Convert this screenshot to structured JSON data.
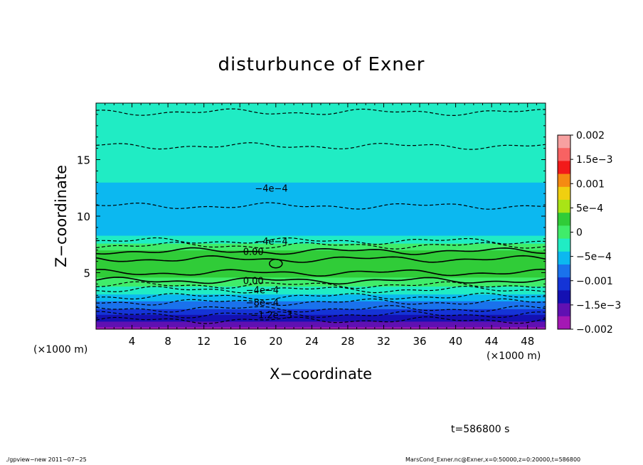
{
  "title": "disturbunce of Exner",
  "xlabel": "X−coordinate",
  "ylabel": "Z−coordinate",
  "x_unit_left": "(×1000 m)",
  "x_unit_right": "(×1000 m)",
  "time_label": "t=586800 s",
  "footer_left": "./gpview−new   2011−07−25",
  "footer_right": "MarsCond_Exner.nc@Exner,x=0:50000,z=0:20000,t=586800",
  "chart_data": {
    "type": "heatmap",
    "title": "disturbunce of Exner",
    "xlabel": "X−coordinate",
    "ylabel": "Z−coordinate",
    "xlim": [
      0,
      50
    ],
    "ylim": [
      0,
      20
    ],
    "x_ticks": [
      4,
      8,
      12,
      16,
      20,
      24,
      28,
      32,
      36,
      40,
      44,
      48
    ],
    "y_ticks": [
      5,
      10,
      15
    ],
    "x_tick_labels": [
      "4",
      "8",
      "12",
      "16",
      "20",
      "24",
      "28",
      "32",
      "36",
      "40",
      "44",
      "48"
    ],
    "y_tick_labels": [
      "5",
      "10",
      "15"
    ],
    "colorbar": {
      "range": [
        -0.002,
        0.002
      ],
      "tick_values": [
        0.002,
        0.0015,
        0.001,
        0.0005,
        0,
        -0.0005,
        -0.001,
        -0.0015,
        -0.002
      ],
      "tick_labels": [
        "0.002",
        "1.5e−3",
        "0.001",
        "5e−4",
        "0",
        "−5e−4",
        "−0.001",
        "−1.5e−3",
        "−0.002"
      ],
      "colors": [
        "#f7a0a0",
        "#f86262",
        "#f21a1a",
        "#f58a12",
        "#f0cf10",
        "#a9e416",
        "#30cc38",
        "#40ec6a",
        "#20ecc4",
        "#0cb8f0",
        "#1a72ec",
        "#1434d6",
        "#1410b2",
        "#6010b2",
        "#a418b4"
      ]
    },
    "profile": {
      "z": [
        0,
        0.5,
        1,
        1.5,
        2,
        2.5,
        3,
        3.5,
        4,
        4.5,
        5,
        5.5,
        6,
        6.5,
        7,
        7.5,
        8,
        8.5,
        9,
        10,
        11,
        12,
        13,
        14,
        15,
        16,
        17,
        18,
        19,
        20
      ],
      "values": [
        -0.0018,
        -0.0016,
        -0.0013,
        -0.0011,
        -0.00085,
        -0.00065,
        -0.00045,
        -0.00025,
        -5e-05,
        0.0001,
        0.00024,
        0.00032,
        0.00036,
        0.00033,
        0.00015,
        -0.0001,
        -0.0003,
        -0.0005,
        -0.00058,
        -0.00065,
        -0.00055,
        -0.00045,
        -0.0004,
        -0.00033,
        -0.00027,
        -0.00024,
        -0.00026,
        -0.0002,
        -0.00018,
        -0.00015
      ]
    },
    "contour_labels": [
      {
        "text": "−4e−4",
        "x": 19.5,
        "z": 12.5
      },
      {
        "text": "−4e−4",
        "x": 19.5,
        "z": 7.8
      },
      {
        "text": "0.00",
        "x": 17.5,
        "z": 6.9
      },
      {
        "text": "0.00",
        "x": 17.5,
        "z": 4.3
      },
      {
        "text": "−4e−4",
        "x": 18.5,
        "z": 3.5
      },
      {
        "text": "−8e−4",
        "x": 18.5,
        "z": 2.4
      },
      {
        "text": "−1.2e−3",
        "x": 19.5,
        "z": 1.3
      }
    ],
    "contour_lines": [
      {
        "z": 0.8,
        "dashed": true
      },
      {
        "z": 1.3,
        "dashed": true
      },
      {
        "z": 1.8,
        "dashed": true
      },
      {
        "z": 2.4,
        "dashed": true
      },
      {
        "z": 2.9,
        "dashed": true
      },
      {
        "z": 3.5,
        "dashed": true
      },
      {
        "z": 3.9,
        "dashed": true
      },
      {
        "z": 4.3,
        "dashed": false
      },
      {
        "z": 5.0,
        "dashed": false
      },
      {
        "z": 6.2,
        "dashed": false
      },
      {
        "z": 6.9,
        "dashed": false
      },
      {
        "z": 7.4,
        "dashed": true
      },
      {
        "z": 7.8,
        "dashed": true
      },
      {
        "z": 10.9,
        "dashed": true
      },
      {
        "z": 16.2,
        "dashed": true
      },
      {
        "z": 19.2,
        "dashed": true
      }
    ]
  }
}
